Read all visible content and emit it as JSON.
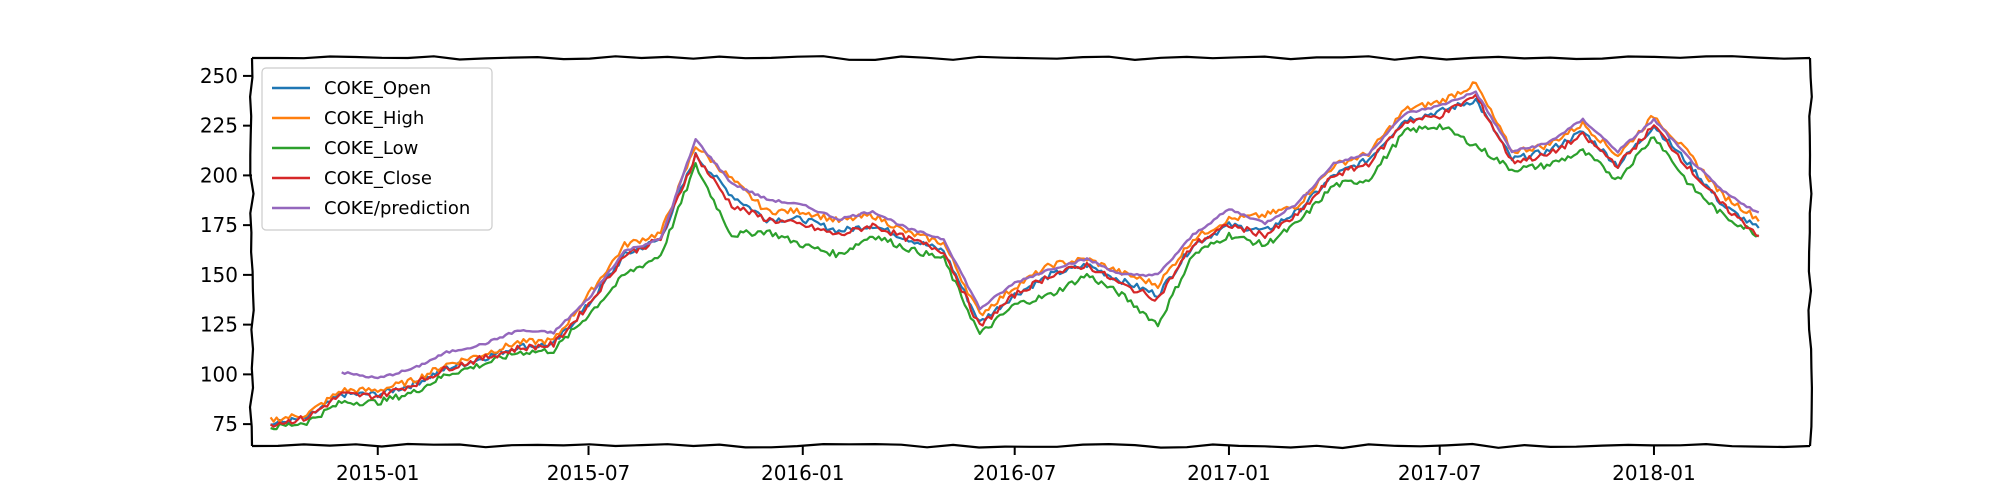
{
  "chart_data": {
    "type": "line",
    "title": "",
    "xlabel": "",
    "ylabel": "",
    "x_ticks": [
      "2015-01",
      "2015-07",
      "2016-01",
      "2016-07",
      "2017-01",
      "2017-07",
      "2018-01"
    ],
    "x_range": [
      "2014-09-15",
      "2018-05-15"
    ],
    "y_ticks": [
      75,
      100,
      125,
      150,
      175,
      200,
      225,
      250
    ],
    "ylim": [
      64,
      259
    ],
    "grid": false,
    "legend_position": "top-left",
    "x": [
      "2014-10-01",
      "2014-11-01",
      "2014-12-01",
      "2015-01-01",
      "2015-02-01",
      "2015-03-01",
      "2015-04-01",
      "2015-05-01",
      "2015-06-01",
      "2015-07-01",
      "2015-08-01",
      "2015-09-01",
      "2015-10-01",
      "2015-11-01",
      "2015-12-01",
      "2016-01-01",
      "2016-02-01",
      "2016-03-01",
      "2016-04-01",
      "2016-05-01",
      "2016-06-01",
      "2016-07-01",
      "2016-08-01",
      "2016-09-01",
      "2016-10-01",
      "2016-11-01",
      "2016-12-01",
      "2017-01-01",
      "2017-02-01",
      "2017-03-01",
      "2017-04-01",
      "2017-05-01",
      "2017-06-01",
      "2017-07-01",
      "2017-08-01",
      "2017-09-01",
      "2017-10-01",
      "2017-11-01",
      "2017-12-01",
      "2018-01-01",
      "2018-02-01",
      "2018-03-01",
      "2018-04-01"
    ],
    "series": [
      {
        "name": "COKE_Open",
        "color": "#1f77b4",
        "values": [
          75,
          78,
          90,
          90,
          95,
          103,
          108,
          114,
          115,
          135,
          160,
          168,
          210,
          190,
          178,
          178,
          172,
          175,
          168,
          162,
          126,
          140,
          150,
          155,
          147,
          140,
          165,
          175,
          172,
          182,
          200,
          208,
          228,
          232,
          238,
          208,
          212,
          222,
          205,
          225,
          205,
          185,
          173
        ]
      },
      {
        "name": "COKE_High",
        "color": "#ff7f0e",
        "values": [
          77,
          80,
          92,
          92,
          97,
          105,
          110,
          116,
          117,
          140,
          165,
          171,
          215,
          198,
          182,
          182,
          177,
          180,
          171,
          166,
          130,
          144,
          155,
          158,
          151,
          145,
          168,
          178,
          180,
          185,
          205,
          211,
          233,
          237,
          246,
          212,
          215,
          226,
          210,
          230,
          210,
          190,
          178
        ]
      },
      {
        "name": "COKE_Low",
        "color": "#2ca02c",
        "values": [
          73,
          76,
          86,
          86,
          91,
          100,
          105,
          111,
          112,
          130,
          150,
          160,
          205,
          170,
          172,
          165,
          160,
          170,
          163,
          158,
          120,
          135,
          140,
          150,
          140,
          125,
          160,
          170,
          165,
          176,
          195,
          198,
          222,
          225,
          215,
          203,
          205,
          212,
          198,
          220,
          195,
          180,
          170
        ]
      },
      {
        "name": "COKE_Close",
        "color": "#d62728",
        "values": [
          75,
          78,
          90,
          89,
          95,
          103,
          108,
          113,
          115,
          135,
          160,
          168,
          210,
          185,
          178,
          175,
          170,
          175,
          168,
          162,
          124,
          140,
          150,
          155,
          145,
          138,
          165,
          175,
          170,
          180,
          200,
          206,
          227,
          230,
          240,
          207,
          210,
          220,
          205,
          225,
          203,
          185,
          170
        ]
      },
      {
        "name": "COKE/prediction",
        "color": "#9467bd",
        "values": [
          null,
          null,
          101,
          98,
          103,
          111,
          115,
          122,
          121,
          138,
          162,
          168,
          218,
          196,
          188,
          185,
          178,
          182,
          173,
          168,
          133,
          146,
          153,
          158,
          150,
          150,
          170,
          183,
          176,
          186,
          206,
          211,
          231,
          235,
          242,
          212,
          216,
          228,
          212,
          228,
          208,
          192,
          181
        ]
      }
    ]
  }
}
